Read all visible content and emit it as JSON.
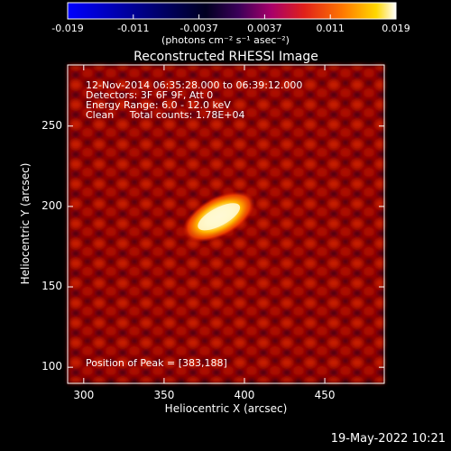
{
  "colorbar": {
    "tick_labels": [
      "-0.019",
      "-0.011",
      "-0.0037",
      "0.0037",
      "0.011",
      "0.019"
    ],
    "unit_label": "(photons cm⁻² s⁻¹ asec⁻²)",
    "colormap": [
      "#0000ff",
      "#000000",
      "#5a007a",
      "#c8002a",
      "#ff5a00",
      "#ffd000",
      "#ffffff"
    ],
    "range": [
      -0.019,
      0.019
    ]
  },
  "title": "Reconstructed RHESSI Image",
  "info": {
    "line1": "12-Nov-2014 06:35:28.000 to 06:39:12.000",
    "line2": "Detectors: 3F 6F 9F, Att 0",
    "line3": "Energy Range: 6.0 - 12.0 keV",
    "line4": "Clean     Total counts: 1.78E+04"
  },
  "peak_text": "Position of Peak = [383,188]",
  "axes": {
    "xlabel": "Heliocentric X (arcsec)",
    "ylabel": "Heliocentric Y (arcsec)",
    "xlim": [
      290,
      487
    ],
    "ylim": [
      90,
      288
    ],
    "xticks": [
      300,
      350,
      400,
      450
    ],
    "yticks": [
      100,
      150,
      200,
      250
    ]
  },
  "peak": {
    "x": 383,
    "y": 188
  },
  "timestamp": "19-May-2022 10:21"
}
